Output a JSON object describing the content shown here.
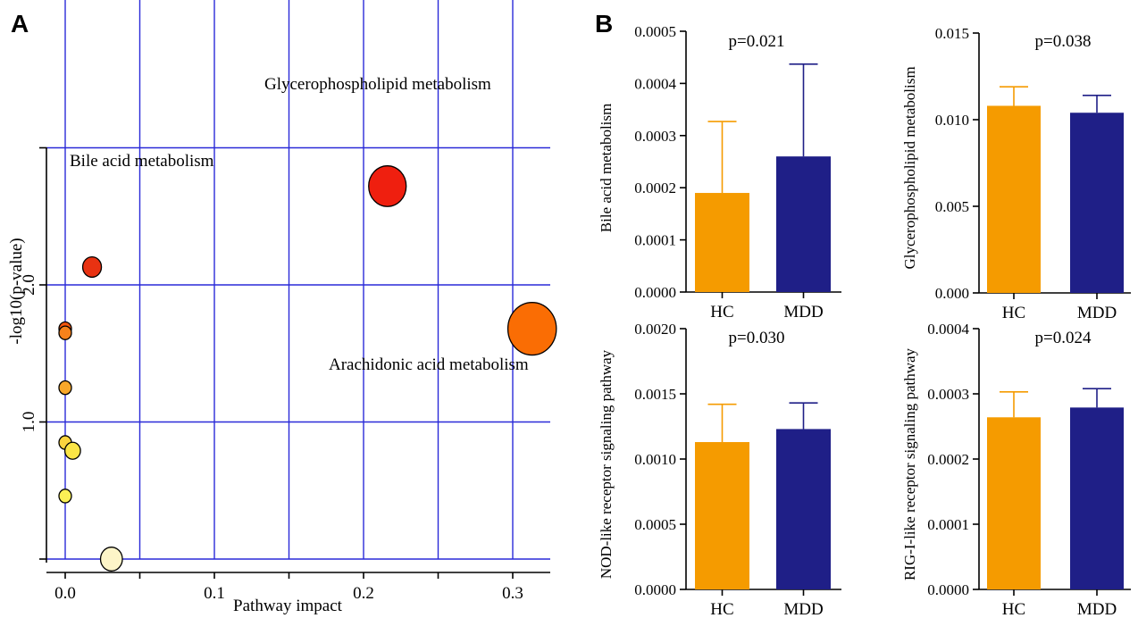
{
  "panel_labels": {
    "a": "A",
    "b": "B"
  },
  "colors": {
    "grid": "#2a2ad8",
    "hc": "#f59b00",
    "mdd": "#1f1f87"
  },
  "chart_data": [
    {
      "id": "A",
      "type": "scatter",
      "xlabel": "Pathway impact",
      "ylabel": "-log10(p-value)",
      "xlim": [
        0.0,
        0.33
      ],
      "ylim": [
        0.0,
        2.78
      ],
      "x_ticks": [
        "0.0",
        "0.1",
        "0.2",
        "0.3"
      ],
      "y_ticks": [
        "1.0",
        "2.0"
      ],
      "grid": true,
      "points": [
        {
          "x": 0.216,
          "y": 2.72,
          "r": 1.2,
          "color": "#ef1f0f",
          "label": "Glycerophospholipid metabolism"
        },
        {
          "x": 0.018,
          "y": 2.13,
          "r": 0.6,
          "color": "#e83212",
          "label": "Bile acid metabolism"
        },
        {
          "x": 0.313,
          "y": 1.68,
          "r": 1.55,
          "color": "#fa6d04",
          "label": "Arachidonic acid metabolism"
        },
        {
          "x": 0.0,
          "y": 1.68,
          "r": 0.4,
          "color": "#f5560e",
          "label": ""
        },
        {
          "x": 0.0,
          "y": 1.65,
          "r": 0.4,
          "color": "#f7821b",
          "label": ""
        },
        {
          "x": 0.0,
          "y": 1.25,
          "r": 0.4,
          "color": "#f8a82a",
          "label": ""
        },
        {
          "x": 0.0,
          "y": 0.85,
          "r": 0.4,
          "color": "#fbd43e",
          "label": ""
        },
        {
          "x": 0.005,
          "y": 0.79,
          "r": 0.5,
          "color": "#fbe546",
          "label": ""
        },
        {
          "x": 0.0,
          "y": 0.46,
          "r": 0.4,
          "color": "#fbf055",
          "label": ""
        },
        {
          "x": 0.031,
          "y": 0.0,
          "r": 0.7,
          "color": "#fdf5c8",
          "label": ""
        }
      ]
    },
    {
      "id": "B1",
      "type": "bar",
      "categories": [
        "HC",
        "MDD"
      ],
      "values": [
        0.00019,
        0.00026
      ],
      "errors": [
        0.000137,
        0.000177
      ],
      "ylabel": "Bile acid metabolism",
      "annotation": "p=0.021",
      "ylim": [
        0,
        0.0005
      ],
      "y_ticks": [
        "0.0000",
        "0.0001",
        "0.0002",
        "0.0003",
        "0.0004",
        "0.0005"
      ]
    },
    {
      "id": "B2",
      "type": "bar",
      "categories": [
        "HC",
        "MDD"
      ],
      "values": [
        0.0108,
        0.0104
      ],
      "errors": [
        0.0011,
        0.001
      ],
      "ylabel": "Glycerophospholipid metabolism",
      "annotation": "p=0.038",
      "ylim": [
        0,
        0.015
      ],
      "y_ticks": [
        "0.000",
        "0.005",
        "0.010",
        "0.015"
      ]
    },
    {
      "id": "B3",
      "type": "bar",
      "categories": [
        "HC",
        "MDD"
      ],
      "values": [
        0.00113,
        0.00123
      ],
      "errors": [
        0.00029,
        0.0002
      ],
      "ylabel": "NOD-like receptor signaling pathway",
      "annotation": "p=0.030",
      "ylim": [
        0,
        0.002
      ],
      "y_ticks": [
        "0.0000",
        "0.0005",
        "0.0010",
        "0.0015",
        "0.0020"
      ]
    },
    {
      "id": "B4",
      "type": "bar",
      "categories": [
        "HC",
        "MDD"
      ],
      "values": [
        0.000264,
        0.000279
      ],
      "errors": [
        3.9e-05,
        2.9e-05
      ],
      "ylabel": "RIG-I-like receptor signaling pathway",
      "annotation": "p=0.024",
      "ylim": [
        0,
        0.0004
      ],
      "y_ticks": [
        "0.0000",
        "0.0001",
        "0.0002",
        "0.0003",
        "0.0004"
      ]
    }
  ]
}
